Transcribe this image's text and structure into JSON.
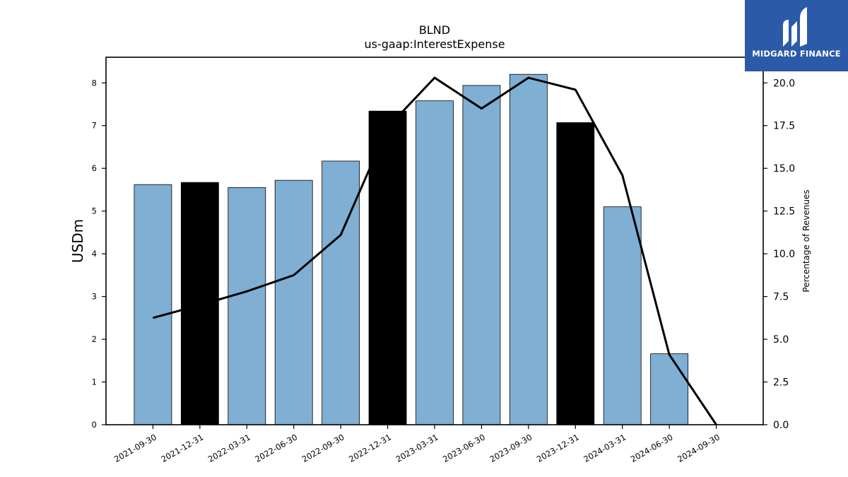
{
  "chart_data": {
    "type": "bar",
    "title": "BLND",
    "subtitle": "us-gaap:InterestExpense",
    "ylabel": "USDm",
    "y2label": "Percentage of Revenues",
    "ylim": [
      0,
      8.6
    ],
    "y2lim": [
      0,
      21.5
    ],
    "yticks": [
      0,
      1,
      2,
      3,
      4,
      5,
      6,
      7,
      8
    ],
    "y2ticks": [
      "0.0",
      "2.5",
      "5.0",
      "7.5",
      "10.0",
      "12.5",
      "15.0",
      "17.5",
      "20.0"
    ],
    "categories": [
      "2021-09-30",
      "2021-12-31",
      "2022-03-31",
      "2022-06-30",
      "2022-09-30",
      "2022-12-31",
      "2023-03-31",
      "2023-06-30",
      "2023-09-30",
      "2023-12-31",
      "2024-03-31",
      "2024-06-30",
      "2024-09-30"
    ],
    "values": [
      5.62,
      5.67,
      5.55,
      5.72,
      6.17,
      7.34,
      7.58,
      7.94,
      8.2,
      7.07,
      5.1,
      1.66,
      null
    ],
    "highlight": [
      false,
      true,
      false,
      false,
      false,
      true,
      false,
      false,
      false,
      true,
      false,
      false,
      false
    ],
    "line_values": [
      6.25,
      7.0,
      7.8,
      8.75,
      11.1,
      17.4,
      20.3,
      18.5,
      20.3,
      19.6,
      14.6,
      4.1,
      0.0
    ],
    "bar_color": "#7fafd3",
    "highlight_color": "#000000",
    "line_color": "#000000",
    "grid": false
  },
  "logo": {
    "text": "MIDGARD FINANCE",
    "color": "#2b5aa8"
  }
}
